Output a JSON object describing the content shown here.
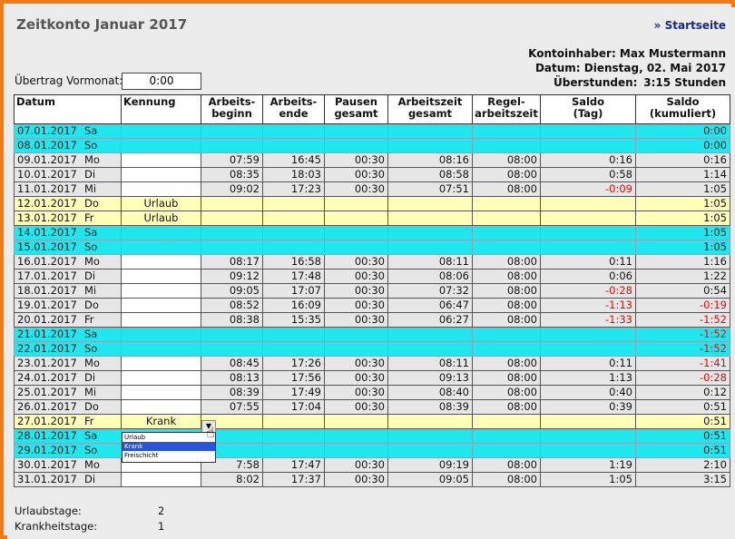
{
  "title": "Zeitkonto Januar 2017",
  "startlink": "» Startseite",
  "info": {
    "owner": "Kontoinhaber: Max Mustermann",
    "date": "Datum: Dienstag, 02. Mai 2017",
    "overtime_label": "Überstunden:",
    "overtime_value": "3:15 Stunden"
  },
  "uebertrag": {
    "label": "Übertrag Vormonat:",
    "value": "0:00"
  },
  "headers": {
    "datum": "Datum",
    "kennung": "Kennung",
    "beginn": "Arbeits-\nbeginn",
    "ende": "Arbeits-\nende",
    "pausen": "Pausen\ngesamt",
    "gesamt": "Arbeitszeit\ngesamt",
    "regel": "Regel-\narbeitszeit",
    "saldo_tag": "Saldo\n(Tag)",
    "saldo_kum": "Saldo\n(kumuliert)"
  },
  "rows": [
    {
      "date": "07.01.2017",
      "day": "Sa",
      "type": "weekend",
      "kennung": "",
      "beginn": "",
      "ende": "",
      "pausen": "",
      "gesamt": "",
      "regel": "",
      "saldo": "",
      "kum": "0:00"
    },
    {
      "date": "08.01.2017",
      "day": "So",
      "type": "weekend",
      "kennung": "",
      "beginn": "",
      "ende": "",
      "pausen": "",
      "gesamt": "",
      "regel": "",
      "saldo": "",
      "kum": "0:00"
    },
    {
      "date": "09.01.2017",
      "day": "Mo",
      "type": "work",
      "kennung": "",
      "beginn": "07:59",
      "ende": "16:45",
      "pausen": "00:30",
      "gesamt": "08:16",
      "regel": "08:00",
      "saldo": "0:16",
      "kum": "0:16"
    },
    {
      "date": "10.01.2017",
      "day": "Di",
      "type": "work",
      "kennung": "",
      "beginn": "08:35",
      "ende": "18:03",
      "pausen": "00:30",
      "gesamt": "08:58",
      "regel": "08:00",
      "saldo": "0:58",
      "kum": "1:14"
    },
    {
      "date": "11.01.2017",
      "day": "Mi",
      "type": "work",
      "kennung": "",
      "beginn": "09:02",
      "ende": "17:23",
      "pausen": "00:30",
      "gesamt": "07:51",
      "regel": "08:00",
      "saldo": "-0:09",
      "kum": "1:05"
    },
    {
      "date": "12.01.2017",
      "day": "Do",
      "type": "urlaub",
      "kennung": "Urlaub",
      "beginn": "",
      "ende": "",
      "pausen": "",
      "gesamt": "",
      "regel": "",
      "saldo": "",
      "kum": "1:05"
    },
    {
      "date": "13.01.2017",
      "day": "Fr",
      "type": "urlaub",
      "kennung": "Urlaub",
      "beginn": "",
      "ende": "",
      "pausen": "",
      "gesamt": "",
      "regel": "",
      "saldo": "",
      "kum": "1:05"
    },
    {
      "date": "14.01.2017",
      "day": "Sa",
      "type": "weekend",
      "kennung": "",
      "beginn": "",
      "ende": "",
      "pausen": "",
      "gesamt": "",
      "regel": "",
      "saldo": "",
      "kum": "1:05"
    },
    {
      "date": "15.01.2017",
      "day": "So",
      "type": "weekend",
      "kennung": "",
      "beginn": "",
      "ende": "",
      "pausen": "",
      "gesamt": "",
      "regel": "",
      "saldo": "",
      "kum": "1:05"
    },
    {
      "date": "16.01.2017",
      "day": "Mo",
      "type": "work",
      "kennung": "",
      "beginn": "08:17",
      "ende": "16:58",
      "pausen": "00:30",
      "gesamt": "08:11",
      "regel": "08:00",
      "saldo": "0:11",
      "kum": "1:16"
    },
    {
      "date": "17.01.2017",
      "day": "Di",
      "type": "work",
      "kennung": "",
      "beginn": "09:12",
      "ende": "17:48",
      "pausen": "00:30",
      "gesamt": "08:06",
      "regel": "08:00",
      "saldo": "0:06",
      "kum": "1:22"
    },
    {
      "date": "18.01.2017",
      "day": "Mi",
      "type": "work",
      "kennung": "",
      "beginn": "09:05",
      "ende": "17:07",
      "pausen": "00:30",
      "gesamt": "07:32",
      "regel": "08:00",
      "saldo": "-0:28",
      "kum": "0:54"
    },
    {
      "date": "19.01.2017",
      "day": "Do",
      "type": "work",
      "kennung": "",
      "beginn": "08:52",
      "ende": "16:09",
      "pausen": "00:30",
      "gesamt": "06:47",
      "regel": "08:00",
      "saldo": "-1:13",
      "kum": "-0:19"
    },
    {
      "date": "20.01.2017",
      "day": "Fr",
      "type": "work",
      "kennung": "",
      "beginn": "08:38",
      "ende": "15:35",
      "pausen": "00:30",
      "gesamt": "06:27",
      "regel": "08:00",
      "saldo": "-1:33",
      "kum": "-1:52"
    },
    {
      "date": "21.01.2017",
      "day": "Sa",
      "type": "weekend",
      "kennung": "",
      "beginn": "",
      "ende": "",
      "pausen": "",
      "gesamt": "",
      "regel": "",
      "saldo": "",
      "kum": "-1:52"
    },
    {
      "date": "22.01.2017",
      "day": "So",
      "type": "weekend",
      "kennung": "",
      "beginn": "",
      "ende": "",
      "pausen": "",
      "gesamt": "",
      "regel": "",
      "saldo": "",
      "kum": "-1:52"
    },
    {
      "date": "23.01.2017",
      "day": "Mo",
      "type": "work",
      "kennung": "",
      "beginn": "08:45",
      "ende": "17:26",
      "pausen": "00:30",
      "gesamt": "08:11",
      "regel": "08:00",
      "saldo": "0:11",
      "kum": "-1:41"
    },
    {
      "date": "24.01.2017",
      "day": "Di",
      "type": "work",
      "kennung": "",
      "beginn": "08:13",
      "ende": "17:56",
      "pausen": "00:30",
      "gesamt": "09:13",
      "regel": "08:00",
      "saldo": "1:13",
      "kum": "-0:28"
    },
    {
      "date": "25.01.2017",
      "day": "Mi",
      "type": "work",
      "kennung": "",
      "beginn": "08:39",
      "ende": "17:49",
      "pausen": "00:30",
      "gesamt": "08:40",
      "regel": "08:00",
      "saldo": "0:40",
      "kum": "0:12"
    },
    {
      "date": "26.01.2017",
      "day": "Do",
      "type": "work",
      "kennung": "",
      "beginn": "07:55",
      "ende": "17:04",
      "pausen": "00:30",
      "gesamt": "08:39",
      "regel": "08:00",
      "saldo": "0:39",
      "kum": "0:51"
    },
    {
      "date": "27.01.2017",
      "day": "Fr",
      "type": "urlaub",
      "kennung": "Krank",
      "beginn": "",
      "ende": "",
      "pausen": "",
      "gesamt": "",
      "regel": "",
      "saldo": "",
      "kum": "0:51"
    },
    {
      "date": "28.01.2017",
      "day": "Sa",
      "type": "weekend",
      "kennung": "",
      "beginn": "",
      "ende": "",
      "pausen": "",
      "gesamt": "",
      "regel": "",
      "saldo": "",
      "kum": "0:51"
    },
    {
      "date": "29.01.2017",
      "day": "So",
      "type": "weekend",
      "kennung": "",
      "beginn": "",
      "ende": "",
      "pausen": "",
      "gesamt": "",
      "regel": "",
      "saldo": "",
      "kum": "0:51"
    },
    {
      "date": "30.01.2017",
      "day": "Mo",
      "type": "work",
      "kennung": "",
      "beginn": "7:58",
      "ende": "17:47",
      "pausen": "00:30",
      "gesamt": "09:19",
      "regel": "08:00",
      "saldo": "1:19",
      "kum": "2:10"
    },
    {
      "date": "31.01.2017",
      "day": "Di",
      "type": "work",
      "kennung": "",
      "beginn": "8:02",
      "ende": "17:37",
      "pausen": "00:30",
      "gesamt": "09:05",
      "regel": "08:00",
      "saldo": "1:05",
      "kum": "3:15"
    }
  ],
  "dropdown": {
    "options": [
      "Urlaub",
      "Krank",
      "Freischicht"
    ],
    "selected_index": 1
  },
  "footer": {
    "urlaub_label": "Urlaubstage:",
    "urlaub_value": "2",
    "krank_label": "Krankheitstage:",
    "krank_value": "1"
  },
  "colors": {
    "weekend": "#22e6ee",
    "urlaub": "#ffffb8",
    "work": "#e6e6e6",
    "negative": "#d21010",
    "frame": "#f07a18"
  }
}
